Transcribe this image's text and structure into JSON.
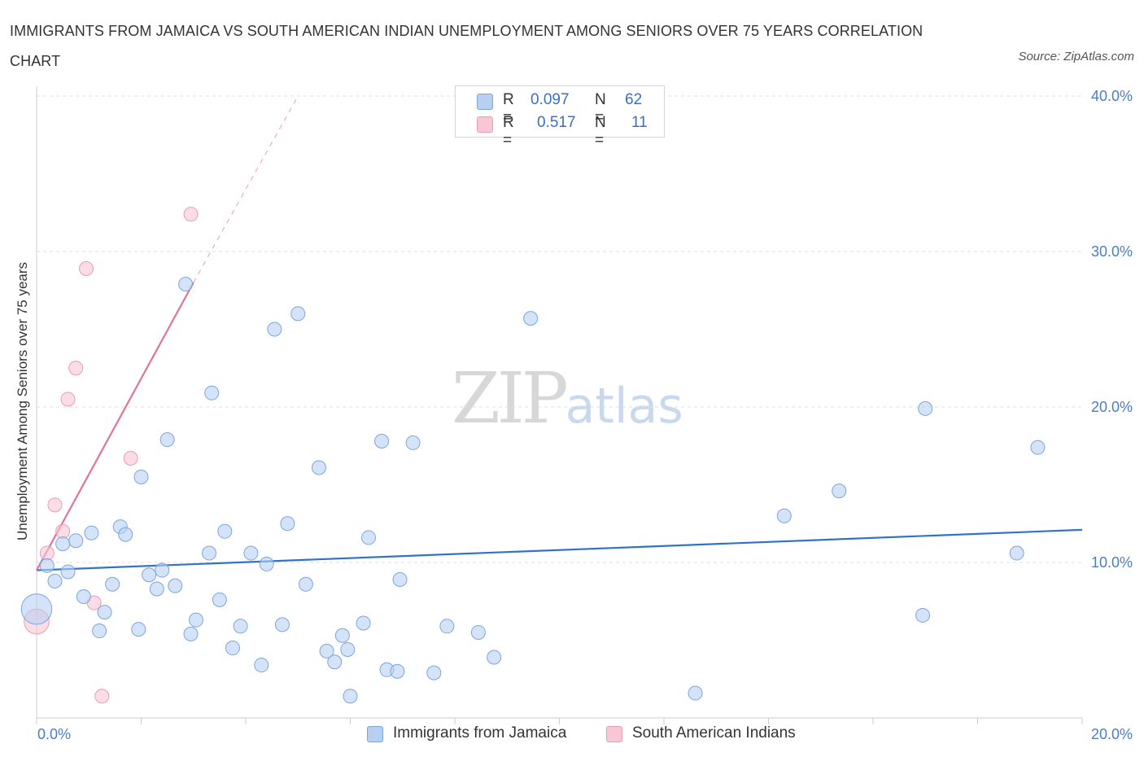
{
  "header": {
    "title": "IMMIGRANTS FROM JAMAICA VS SOUTH AMERICAN INDIAN UNEMPLOYMENT AMONG SENIORS OVER 75 YEARS CORRELATION CHART",
    "source": "Source: ZipAtlas.com"
  },
  "watermark": {
    "zip": "ZIP",
    "atlas": "atlas"
  },
  "legend_top": {
    "rows": [
      {
        "r_label": "R =",
        "r_value": "0.097",
        "n_label": "N =",
        "n_value": "62",
        "color": "#b7d0f2"
      },
      {
        "r_label": "R =",
        "r_value": "0.517",
        "n_label": "N =",
        "n_value": "11",
        "color": "#f8c7d5"
      }
    ]
  },
  "legend_bottom": [
    {
      "label": "Immigrants from Jamaica",
      "color": "#b7d0f2"
    },
    {
      "label": "South American Indians",
      "color": "#f8c7d5"
    }
  ],
  "colors": {
    "blue_fill": "#b7d0f2",
    "blue_stroke": "#7aa6e0",
    "blue_line": "#2f73c9",
    "pink_fill": "#f8c7d5",
    "pink_stroke": "#eb9bb4",
    "pink_line": "#e0739a",
    "grid": "#dddddd",
    "axis": "#cccccc",
    "tick_label": "#4a7cc9"
  },
  "chart_data": {
    "type": "scatter",
    "title": "IMMIGRANTS FROM JAMAICA VS SOUTH AMERICAN INDIAN UNEMPLOYMENT AMONG SENIORS OVER 75 YEARS CORRELATION CHART",
    "xlabel": "",
    "ylabel": "Unemployment Among Seniors over 75 years",
    "xlim": [
      0,
      20
    ],
    "ylim": [
      0,
      40
    ],
    "x_tick_labels": [
      "0.0%",
      "20.0%"
    ],
    "y_ticks": [
      10,
      20,
      30,
      40
    ],
    "y_tick_labels": [
      "10.0%",
      "20.0%",
      "30.0%",
      "40.0%"
    ],
    "grid": true,
    "series": [
      {
        "name": "Immigrants from Jamaica",
        "R": 0.097,
        "N": 62,
        "points": [
          [
            0.0,
            7.0,
            2.2
          ],
          [
            0.2,
            9.8,
            1.0
          ],
          [
            0.35,
            8.8,
            1.0
          ],
          [
            0.5,
            11.2,
            1.0
          ],
          [
            0.6,
            9.4,
            1.0
          ],
          [
            0.75,
            11.4,
            1.0
          ],
          [
            0.9,
            7.8,
            1.0
          ],
          [
            1.05,
            11.9,
            1.0
          ],
          [
            1.2,
            5.6,
            1.0
          ],
          [
            1.3,
            6.8,
            1.0
          ],
          [
            1.45,
            8.6,
            1.0
          ],
          [
            1.6,
            12.3,
            1.0
          ],
          [
            1.7,
            11.8,
            1.0
          ],
          [
            1.95,
            5.7,
            1.0
          ],
          [
            2.0,
            15.5,
            1.0
          ],
          [
            2.15,
            9.2,
            1.0
          ],
          [
            2.3,
            8.3,
            1.0
          ],
          [
            2.4,
            9.5,
            1.0
          ],
          [
            2.5,
            17.9,
            1.0
          ],
          [
            2.65,
            8.5,
            1.0
          ],
          [
            2.85,
            27.9,
            1.0
          ],
          [
            2.95,
            5.4,
            1.0
          ],
          [
            3.05,
            6.3,
            1.0
          ],
          [
            3.3,
            10.6,
            1.0
          ],
          [
            3.35,
            20.9,
            1.0
          ],
          [
            3.5,
            7.6,
            1.0
          ],
          [
            3.6,
            12.0,
            1.0
          ],
          [
            3.75,
            4.5,
            1.0
          ],
          [
            3.9,
            5.9,
            1.0
          ],
          [
            4.1,
            10.6,
            1.0
          ],
          [
            4.3,
            3.4,
            1.0
          ],
          [
            4.4,
            9.9,
            1.0
          ],
          [
            4.55,
            25.0,
            1.0
          ],
          [
            4.7,
            6.0,
            1.0
          ],
          [
            4.8,
            12.5,
            1.0
          ],
          [
            5.0,
            26.0,
            1.0
          ],
          [
            5.15,
            8.6,
            1.0
          ],
          [
            5.4,
            16.1,
            1.0
          ],
          [
            5.55,
            4.3,
            1.0
          ],
          [
            5.7,
            3.6,
            1.0
          ],
          [
            5.85,
            5.3,
            1.0
          ],
          [
            5.95,
            4.4,
            1.0
          ],
          [
            6.0,
            1.4,
            1.0
          ],
          [
            6.25,
            6.1,
            1.0
          ],
          [
            6.35,
            11.6,
            1.0
          ],
          [
            6.6,
            17.8,
            1.0
          ],
          [
            6.7,
            3.1,
            1.0
          ],
          [
            6.9,
            3.0,
            1.0
          ],
          [
            6.95,
            8.9,
            1.0
          ],
          [
            7.2,
            17.7,
            1.0
          ],
          [
            7.6,
            2.9,
            1.0
          ],
          [
            7.85,
            5.9,
            1.0
          ],
          [
            8.45,
            5.5,
            1.0
          ],
          [
            8.75,
            3.9,
            1.0
          ],
          [
            9.45,
            25.7,
            1.0
          ],
          [
            12.6,
            1.6,
            1.0
          ],
          [
            14.3,
            13.0,
            1.0
          ],
          [
            15.35,
            14.6,
            1.0
          ],
          [
            16.95,
            6.6,
            1.0
          ],
          [
            17.0,
            19.9,
            1.0
          ],
          [
            19.15,
            17.4,
            1.0
          ],
          [
            18.75,
            10.6,
            1.0
          ]
        ],
        "trend": {
          "x": [
            0,
            20
          ],
          "y": [
            9.5,
            12.1
          ]
        }
      },
      {
        "name": "South American Indians",
        "R": 0.517,
        "N": 11,
        "points": [
          [
            0.0,
            6.2,
            1.8
          ],
          [
            0.2,
            10.6,
            1.0
          ],
          [
            0.35,
            13.7,
            1.0
          ],
          [
            0.5,
            12.0,
            1.0
          ],
          [
            0.6,
            20.5,
            1.0
          ],
          [
            0.75,
            22.5,
            1.0
          ],
          [
            0.95,
            28.9,
            1.0
          ],
          [
            1.1,
            7.4,
            1.0
          ],
          [
            1.25,
            1.4,
            1.0
          ],
          [
            1.8,
            16.7,
            1.0
          ],
          [
            2.95,
            32.4,
            1.0
          ]
        ],
        "trend": {
          "x": [
            0,
            3.0
          ],
          "y": [
            9.5,
            28.0
          ]
        },
        "trend_dashed": {
          "x": [
            3.0,
            5.0
          ],
          "y": [
            28.0,
            40.0
          ]
        }
      }
    ]
  }
}
